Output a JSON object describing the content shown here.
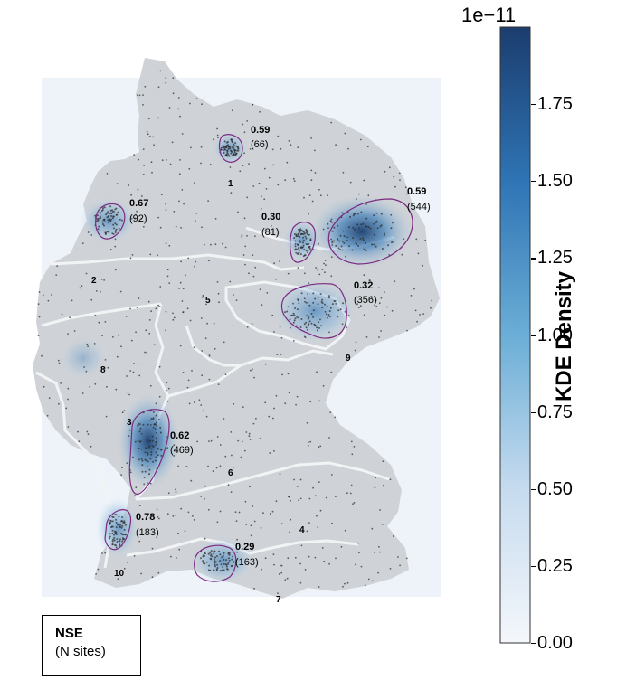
{
  "legend": {
    "title": "NSE",
    "subtitle": "(N sites)"
  },
  "colorbar": {
    "exponent_label": "1e−11",
    "axis_label": "KDE Density",
    "min": 0.0,
    "max": 2.0,
    "ticks": [
      "0.00",
      "0.25",
      "0.50",
      "0.75",
      "1.00",
      "1.25",
      "1.50",
      "1.75"
    ],
    "tick_values": [
      0.0,
      0.25,
      0.5,
      0.75,
      1.0,
      1.25,
      1.5,
      1.75
    ],
    "color_low": "#f4f7fb",
    "color_high": "#1b3d6e"
  },
  "clusters": [
    {
      "nse": "0.59",
      "n": "(66)"
    },
    {
      "nse": "0.67",
      "n": "(92)"
    },
    {
      "nse": "0.30",
      "n": "(81)"
    },
    {
      "nse": "0.59",
      "n": "(544)"
    },
    {
      "nse": "0.32",
      "n": "(356)"
    },
    {
      "nse": "0.62",
      "n": "(469)"
    },
    {
      "nse": "0.78",
      "n": "(183)"
    },
    {
      "nse": "0.29",
      "n": "(163)"
    }
  ],
  "regions": [
    "1",
    "2",
    "3",
    "4",
    "5",
    "6",
    "7",
    "8",
    "9",
    "10"
  ],
  "colors": {
    "land": "#cfd2d6",
    "border": "#f2f3f5",
    "contour": "#7a2a82",
    "site_dot": "#2a2a2a"
  }
}
